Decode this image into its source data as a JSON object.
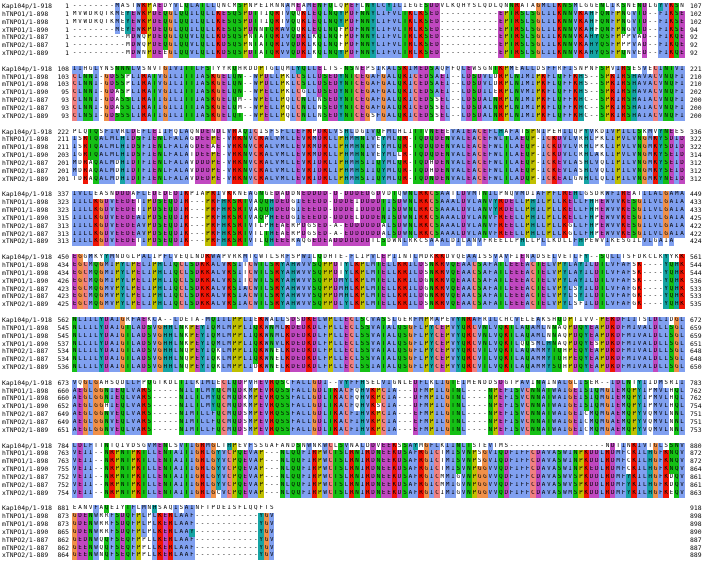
{
  "sequence_names": [
    "Kap104p/1-918",
    "hTNPO1/1-898",
    "mTNPO1/1-898",
    "xTNPO1/1-890",
    "hTNPO2/1-887",
    "mTNPO2/1-887",
    "xTNPO2/1-889"
  ],
  "color_scheme": {
    "hydrophobic": "#80a0f0",
    "positive": "#f01505",
    "negative": "#c048c0",
    "polar": "#15c015",
    "cysteine": "#f08080",
    "glycine": "#f09048",
    "proline": "#c0c000",
    "aromatic": "#15a4a4"
  },
  "blocks": [
    {
      "starts": [
        1,
        1,
        1,
        1,
        1,
        1,
        1
      ],
      "ends": [
        107,
        102,
        102,
        94,
        92,
        92,
        92
      ],
      "rows": [
        "--------MASTWKPAEDYVLQLATLLQNCMSPNPEIRNNAMEAMENFQLQPEFLNYLCYILIEGESDDVLKQHYSLQDLQNNRATAGMLLKNSMLGGENLIKSNENDLGYVKSN",
        "MVWDRQTKMEYEWKPDEQGLQQILQLLKESQSPDTTIQRTVQQKLEQLNQYPDFNNYLIFVLTKLKSED-----------EPTRSLSGLILKNNVKAHFQNFPNGVTD--FIKSE",
        "MVWDRQTKMEYEWKPDEQGLQQILQLLKESQSPDTTIQRTVQQKLEQLNQYPDFNNYLIFVLTKLKSED-----------EPTRSLSGLILKNNVKAHFQNFPNGVTD--FIKSE",
        "--------MEYEWKPDEQGLQQILQLLKESQSPDNNTQRAVQQKLEQLNQFPDFNNYLIFVLTRLKSED-----------EPTRSLSGLILKNNVKAHFQNFPNGVTD--FIKSE",
        "----------MDWQPDEQGLQQVLQLLKDSQSPNTATQRIVQDKLKQLNQFPDFNNYLIFVLTRLKSED-----------EPTRSLSGLILKNNVKAHYQSFPPPVAD--FIKQE",
        "----------MDWQPDEQGLQQVLQLLKDSQSPNTATQRIVQDKLKQLNQFPDFNNYLIFVLTRLKSED-----------EPTRSLSGLILKNNVKAHYQSFPPPVAD--FIKQE",
        "----------MDWNPDEEGLQQVLQLLKDSQSPDTATQRVVQDKLKQLNQYPDFNNYLIFVLTRLKSED-----------EPTRSLSGLILKNNVKAHYQSFPQNVED--FIKQE"
      ]
    },
    {
      "starts": [
        108,
        103,
        103,
        95,
        93,
        93,
        93
      ],
      "ends": [
        221,
        210,
        210,
        202,
        200,
        200,
        200
      ],
      "rows": [
        "IIHGLYNSNNNLVSNVTGIVITTLFSTYYRQHRDDPTGLQMLYQLLELTS-NSNEPSIKALSKIMEDSAQFFQLEWSGNTKPMEALLDSFFRFISNPNFSPVIRSESVECINTVI",
        "CLNNI-GDSSPLIRATVGILITTIASKGELQN--WPDLLPKLCSLLDSEDYNTCEGAFGALQKICEDSAEI--LDSDVLDRPLNIMIPKFLQFFKHS--SPKIRSHAVACVNQFI",
        "CLNNI-GDSSPLIRATVGILITTIASKGELQN--WPDLLPKLCSLLDSEDYNTCEGAFGALQKICEDSAEI--LDSDVLDRPLNIMIPKFLQFFKHS--SPKIRSHAVACVNQFI",
        "CLNNI-GDASPLIRATVGILITTIASKGELQN--WPELLPKLCGLLDSEDYNTCEGAFGALQKICEDSAEI--LDSDILERPLNVMIPKFLQFFKHS--SPKIRSHAVACVNQFI",
        "CLNNI-GDASSLIRATIGILITTIASKGELQM--WPELLPQLCNLLNSEDYNTCEGAFGALQKICEDSSEL--LDSDALNRPLNIMIPKFLQFFKHC--SPKIRSHAIACVNQFI",
        "CLNNI-GDASSLIRATIGILITTIASKGELQM--WPELLPQLCNLLNSEDYNTCEGAFGALQKICEDSSEL--LDSDALNRPLNIMIPKFLQFFKHC--SPKIRSHAIACVNQFI",
        "CLNSI-GDSSSLIRATIGILITTIASKGELQT--WPELLPQLCNLLNSEDYNTCEGSFGALQKICEDSSEL--LDSDALNRPLNIMIPKFLQFFKHC--SPKIRSHAIACVNQFI"
      ]
    },
    {
      "starts": [
        222,
        211,
        211,
        203,
        201,
        201,
        201
      ],
      "ends": [
        336,
        322,
        322,
        314,
        312,
        312,
        312
      ],
      "rows": [
        "PLQTQSFIVRLDEFLEIIFQLAQNDENDLVRAQICISFSFLLEFRPDKLVSHLDGIVQFMLHLITTVNEEEVAIEACEFLHAFATSPNIPEHILQPYVKDIVPILLSKMVYNEES",
        "ISRTQALMLHIDSFIENLFALAGDEEPE-VRKNVCRALVMLLEVRMDRLLPHMHNIVEYMLQR-TQDQDENVALEACEFWLTLAEQP-ICKDVLVRHLPKLIPVLVNGMKYSDID",
        "ISRTQALMLHIDSFIENLFALAGDEEAE-VRKNVCRALVMLLEVRMDRLLPHMHNIVEYMLQR-TQDQDENVALEACEFWLTLAEQP-ICKDVLVRHLPKLIPVLVNGMKYSDID",
        "IGRTQALMLHIDSFIENLFALATDEEPE-VRKNVCRALVMLLEVRMDRLLPHMHNIVEYMLLR-TQDQDENVALEACEFWLTLAEQP-ICKDVLCRHLAKLIPVLVNGMKYSEID",
        "MDRAQALMDHIDTFIENLFALAVDDDPE-VRKNVCRALVMLLEVRIDRLIPHMHSIIQYMLQR-TQDHDENVALEACEFWLTLAEQP-ICKEVLASHLVQLIPILVNGMKYSEID",
        "MDRAQALMDHIDTFIENLFALAVDDDPE-VRKNVCRALVMLLEVRIDRLIPHMHSIIQYMLQR-TQDHDENVALEACEFWLTLAEQP-ICKEVLASHLVQLIPILVNGMKYSEID",
        "TDRAQALMDHIDTFIENLFALAVDEDPE-VRKNVCRALVMLLEVRIDRLLPHMHSIIQYMLQR-TQDNDENVALEACEFWLTLADQP-ICKEALGNHLLQLIPILVNGMKYNEID"
      ]
    },
    {
      "starts": [
        337,
        323,
        323,
        315,
        313,
        313,
        313
      ],
      "ends": [
        449,
        433,
        433,
        425,
        422,
        422,
        424
      ],
      "rows": [
        "IVLLEASNDDDAFLEDEDEDIKPIAPRIVKKNEAGNGEDADDNEDDDD-D-DDDEDGDVDTQWNLRKCSAATLDVMTNILPNQVMDIAFPFLREHLGSDRWFIREATILALGAMA",
        "IILLKGDVEEDETIPDSEQDIR---PRFHRSRTVAQQHDEDGIEEEDD-DDDEIDDDDTISDWNLRKCSAAALDVLANVYRDELLPHILPLLKELLFHHEWVVKESGILVLGAIA",
        "IILLKGDVEEDETIPDSEQDIR---PRFHRSRTVAQQHDEDGIEEEDD-DDDEIDDDDTISDWNLRKCSAAALDVLANVYRDELLPHILPLLKELLFHHEWVVKESGILVLGAIA",
        "IILLKGDVEEDEAIPDSEQDIR---PRFHRSRTVAQPHEEDGIEEEDD-DDDELDDDENISDWNIRKCSAAALDVLANVFREELLPHILPLLKELLFHPEWVVKESGILVLGAIA",
        "IILLKGDVEEDEAVPDSEQDIK---PRFHKSRTVTLPHEAERPDGSED-A-EDDDDDDALSDWNLRKCSAAALDVLANVFREELLPHLLPLLKGLLFHPEWVVKESGILVLGAIA",
        "IILLKGDVEEDEAVPDSEQDIK---PRFHKSRTVTLTHEAERPDGSED-A-EDDDDDDALSDWNLRKCSAAALDVLANVFREELLPHLLPLLKGLLFHPEWVVKESGILVLGAIA",
        "IILLKGDVEEDETIPDSEQDIK---PRFHKSRTVTLQHEEERAQGEDEADDDDDDDTLSDWNLRKCSAAALDILANVFREELLPHLLPLLKDLLFHPEWVIKESGILVLGAIA"
      ]
    },
    {
      "starts": [
        450,
        434,
        434,
        426,
        423,
        423,
        425
      ],
      "ends": [
        561,
        544,
        544,
        536,
        533,
        533,
        535
      ],
      "rows": [
        "EGGMKYYMNDGLPALIPFLVEQLNDKWAPVRKMTCWTLSRFSPWILQDHTE-FLIPVLEPIINTLMDKKKDVQEAAISSVAVFIENADSELVETLFY--SQLLTSFDKCLKYYKK",
        "EGCMQGMIPYLPELIPHLIQCLSDKKALVRSITCWTLSRYAHWVVSQPPDTYLKPLMTELLKRILDSNKRVQEAACSAFATLEEEACTELVPYLAYILDTLVFAFSK----YQHK",
        "EGCMQGMIPYLPELIPHLIQCLSDKKALVRSITCWTLSRYAHWVVSQPPDTYLKPLMTELLKRILDSNKRVQEAACSAFATLEEEACTELVPYLAYILDTLVFAFSK----YQHK",
        "EGCMQGMIPYLPELIPHLIQCLSDKKALVRSITCWTLSRYAHWVVSQPPDMYLKPLMTELLKRILDGNKRVQEAACSAFATLEEEACTELVPYLAYILDTLVFAFSK----YQHK",
        "EGCMQGMVPYLPELIPHLIQCLSDKKALVRSIACWTLSRYAHWVVSQPPDMHLKPLMTELLKRILDGNKRVQEAACSAFATLEEEACTELVPYLSYILDTLVFAFGK----YQHK",
        "EGCMQGMVPYLPELIPHLIQCLSDKKALVRSIACWTLSRYAHWVVSQPPDMHLKPLMTELLKRILDGNKRVQEAACSAFATLEEEACTELVPYLSYILDTLVFAFGK----YQHK",
        "EGCMQGMVPYLPELIPHLIQCLSDKKALVRSIACWTLSRYAHWVVSQPPDLYLKPLMTELLKRILDSNKRVQEAACSAFATLEEEACTELVPYLSFILDTLVFAFGK----YQHK"
      ]
    },
    {
      "starts": [
        562,
        545,
        545,
        537,
        534,
        534,
        536
      ],
      "ends": [
        672,
        659,
        659,
        651,
        648,
        648,
        650
      ],
      "rows": [
        "NLIILYDAIGRFAEKCA--LDETA-MQIILPPLIEKWALLSDSDKELWPLLECLSCVASSLGERFMPMAPEVYNRAFRILCHCVELEAKSHQDPTIVV-PEKDFIITSLDLIDGL",
        "NLLILYDAIGTLADSVGHHLNKPEYIQMLMPPLIQKWNMLKDEDKDLFPLLECLSSVATALQSGFLPYCEPVYQRCVNLVQKTLAQAMLNNAQPDQYEAPDKDFMIVALDLLSGL",
        "NLLILYDAIGTLADSVGHHLNKPEYIQMLMPPLIQKWNMLKDEDKDLFPLLECLSSVATALQSGFLPYCEPVYQRCVNLVQKTLAQAMLNNAQPDQYEAPDKDFMIVALDLLSGL",
        "NLLILYDAIGTLADSVGHHLNKPEYIQMLMPPLIQKWNVLKDEDKDLFPLLECLSSVATALQSGFLPYCEPVYQRCVNLVQKTLQQSMLHNAQPDQYESPDKDFMIVALDLLSGL",
        "NLLILYDAIGTLADSVGHHLNQPEYIQKLMPPLIQKWNELKDEDKDLFPLLECLSSVATALQSGFLPYCEPVYQRCVTLVQKTLAQAMMYTQHPEQYEAPDKDFMIVALDLLSGL",
        "NLLILYDAIGTLADSVGHHLNQPEYIQKLMPPLIQKWNELKDEDKDLFPLLECLSSVATALQSGFLPYCEPVYQRCVTLVQKTLAQAMMYTQHPEQYEAPDKDFMIVALDLLSGL",
        "NLLILYDAIGTLADSVGHHLNQPEYIQKLMPPLIDKWNELKDEDKDLFPLLECLSSIATALQSGFLPYCEPVYQRCVTLVQKTLAQAMMYSQHPDQYEAPDKDFMIVALDLLSGL"
      ]
    },
    {
      "starts": [
        673,
        660,
        660,
        652,
        649,
        649,
        651
      ],
      "ends": [
        783,
        762,
        762,
        754,
        751,
        751,
        753
      ],
      "rows": [
        "VQGLGAHSQDLLFPQGTKDLTILKIMLECLQDPVHEVRQSCFALLGDI--VYFFHSELVIGNLEDFLKLIGTEIMENDDSDGTPAVINAINALGLISER--IDLNTYIIDMSRII",
        "AEGLGGNIEQLVARS-----NILTLMYQCMQDKMPEVRQSSFALLGDLTKACFQHVKPCIA---DFMPILGTNL----NPEFISVCNNATWAIGEISIQMGIEMQPYIPMVLHQL",
        "AEGLGGNIEQLVARS-----NILTLMYQCMQDKMPEVRQSSFALLGDLTKACFQHVKPCIA---DFMPILGTNL----NPEFISVCNNATWAIGEISIQMGIEMQPYIPMVLHQL",
        "AEGLGGHIEQLVARS-----NILTLMYQCMQDKMPEVRQSSFALLGDLTKACFQHVKSCIA---DFMPILGTNL----NPEFISVCNNATWAIGEISIQMGIEMQPYIPMVLHQL",
        "AEGLGGNVEQLVARS-----NIMTLLFQCMQDSMPEVRQSSFALLGDLTKACFIHVKPCIA---EFMPILGTNL----NPEFISVCNNATWAIGEICMQMGAEMQPYVQMVLNNL",
        "AEGLGGNVEQLVARS-----NIMTLLFQCMQDSMPEVRQSSFALLGDLTKACFIHVKPCIA---EFMPILGTNL----NPEFISVCNNATWAIGEICMQMGAEMQPYVQMVLNNL",
        "AEGLGGNVEQLVARS-----NIMTLLFQCMQDSMPEVRQSSFALLGDLTKACFIHVKPCIA---EFMPILGTNL----NPEFISVCNNATWAIGEICMQMGAEMQPYVQMVLNNL"
      ]
    },
    {
      "starts": [
        784,
        763,
        763,
        755,
        752,
        752,
        754
      ],
      "ends": [
        880,
        872,
        872,
        864,
        861,
        861,
        863
      ],
      "rows": [
        "LDLFTTNTQIVDSGVMENLSVTIGRMGLTHPEVFSSGAFANDSNWNKWCLSVNALDDVEEKSSAYMGFLKIINLTSTEVTMS------------------NDTINKIVTGLSSNV",
        "VEII--NRPNTPKTLLENTAITIGRLGYVCPQEVAP---NLQQFIRPWCTSLRNIRDNEEKDSAFRGICTMISVNPSGVIQDFIFFCDAVASWINPKDDLRDMFCKILHGFKNQV",
        "VEII--NRPNTPKTLLENTAITIGRLGYVCPQEVAP---NLQQFIRPWCTSLRNIRDNEEKDSAFRGICTMISVNPSGVIQDFIFFCDAVASWINPKDDLRDMFCKILHGFKNQV",
        "VEII--NRPNTPKTLLENTAITIGRLGYVCPQEVAP---NLQQFIRPWCTSLRNIRDNEEKDSAFRGICTMISVNPGGVVQDFIFFCDAVASWINPKEDLRDMFCKILHGFKNQV",
        "VEII--NRPNTPKTLLENTAITIGRLGYVCPQEVAP---NLQQFIRPWCTSLRNIRDNEEKDSAFRGICMMIGVNPGGVVQDFIFFCDAVASWVSPKDDLRDMFYKILHGFKDQV",
        "VEII--NRPNTPKTLLENTAITIGRLGYVCPQEVAP---NLQQFIRPWCTSLRNIRDNEEKDSAFRGICMMIGVNPGGVVQDFIFFCDAVASWVSPKDDLRDMFYKILHGFKDQV",
        "VEII--NRPNTPKTLLENTAITIGRLGCVCPQEVAP---NLQQFIRPWCTSLRNIRDNEEKDSAFRGICIMIGVNPGGVVQDFIFFCDAVASWMSPKDDLRDMFYKILHGFKEQV"
      ]
    },
    {
      "starts": [
        881,
        873,
        873,
        865,
        862,
        862,
        864
      ],
      "ends": [
        918,
        898,
        898,
        890,
        887,
        887,
        889
      ],
      "rows": [
        "EANVFAQEIYTFLMNHSAQISAINFTPDEISFLQQFTS",
        "GDENWRRFSDQFPLPLKERLAAF------------YGV",
        "GDENWRRFSDQFPLPLKERLAAF------------YGV",
        "GDENWRRFSDQFPLPLKERLAAY------------YGV",
        "GEDNWQQFSEQFPPLLKERLAAF------------YGV",
        "GEENWQQFSEQFPPLLKERLAAF------------YGV",
        "GEENWNQFSEQFPPLLKERLAAF------------YGV"
      ]
    }
  ]
}
